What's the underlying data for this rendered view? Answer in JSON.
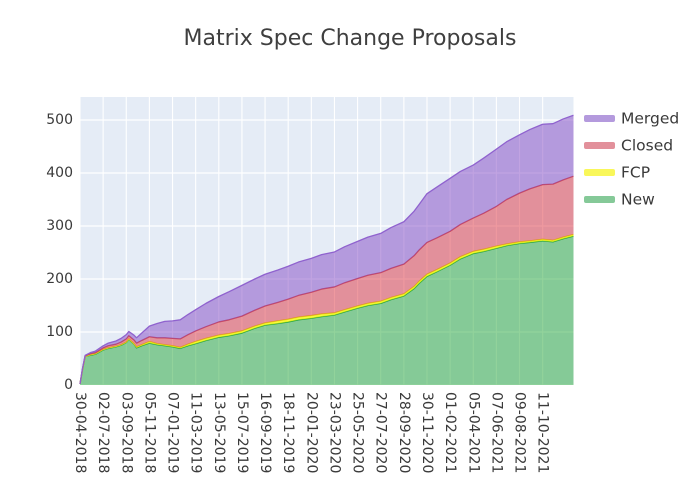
{
  "colors": {
    "plot_background": "#e5ecf6",
    "grid": "#ffffff",
    "text": "#3a3a3a",
    "title_text": "#3f3f3f"
  },
  "legend": {
    "position": "right-top",
    "entries": [
      {
        "label": "Merged",
        "swatch_color": "#b49add"
      },
      {
        "label": "Closed",
        "swatch_color": "#e2909b"
      },
      {
        "label": "FCP",
        "swatch_color": "#f9f75a"
      },
      {
        "label": "New",
        "swatch_color": "#85c998"
      }
    ]
  },
  "chart_data": {
    "type": "area",
    "stacked": true,
    "title": "Matrix Spec Change Proposals",
    "xlabel": "",
    "ylabel": "",
    "grid": true,
    "ylim": [
      0,
      543
    ],
    "y_ticks": [
      0,
      100,
      200,
      300,
      400,
      500
    ],
    "y_tick_labels": [
      "0",
      "100",
      "200",
      "300",
      "400",
      "500"
    ],
    "x_tick_labels": [
      "30-04-2018",
      "02-07-2018",
      "03-09-2018",
      "05-11-2018",
      "07-01-2019",
      "11-03-2019",
      "13-05-2019",
      "15-07-2019",
      "16-09-2019",
      "18-11-2019",
      "20-01-2020",
      "23-03-2020",
      "25-05-2020",
      "27-07-2020",
      "28-09-2020",
      "30-11-2020",
      "01-02-2021",
      "05-04-2021",
      "07-06-2021",
      "09-08-2021",
      "11-10-2021"
    ],
    "dates": [
      "30-04-2018",
      "07-05-2018",
      "14-05-2018",
      "28-05-2018",
      "11-06-2018",
      "02-07-2018",
      "16-07-2018",
      "06-08-2018",
      "20-08-2018",
      "03-09-2018",
      "10-09-2018",
      "24-09-2018",
      "01-10-2018",
      "15-10-2018",
      "05-11-2018",
      "26-11-2018",
      "17-12-2018",
      "07-01-2019",
      "28-01-2019",
      "18-02-2019",
      "11-03-2019",
      "08-04-2019",
      "13-05-2019",
      "10-06-2019",
      "15-07-2019",
      "19-08-2019",
      "16-09-2019",
      "21-10-2019",
      "18-11-2019",
      "16-12-2019",
      "20-01-2020",
      "17-02-2020",
      "23-03-2020",
      "20-04-2020",
      "25-05-2020",
      "22-06-2020",
      "27-07-2020",
      "24-08-2020",
      "28-09-2020",
      "26-10-2020",
      "09-11-2020",
      "30-11-2020",
      "28-12-2020",
      "01-02-2021",
      "01-03-2021",
      "05-04-2021",
      "03-05-2021",
      "07-06-2021",
      "05-07-2021",
      "09-08-2021",
      "06-09-2021",
      "11-10-2021",
      "08-11-2021",
      "06-12-2021",
      "03-01-2022"
    ],
    "series_order_bottom_to_top": [
      "New",
      "FCP",
      "Closed",
      "Merged"
    ],
    "series": [
      {
        "name": "New",
        "fill": "rgba(37,168,56,0.5)",
        "line": "#27a445",
        "values": [
          2,
          30,
          54,
          56,
          58,
          66,
          69,
          72,
          75,
          80,
          86,
          77,
          70,
          74,
          79,
          76,
          74,
          72,
          69,
          74,
          78,
          84,
          90,
          93,
          98,
          107,
          113,
          116,
          119,
          123,
          126,
          129,
          132,
          138,
          145,
          150,
          154,
          161,
          168,
          182,
          192,
          205,
          214,
          226,
          238,
          248,
          252,
          258,
          263,
          267,
          269,
          272,
          270,
          276,
          281
        ]
      },
      {
        "name": "FCP",
        "fill": "rgba(255,255,0,0.75)",
        "line": "#e3e313",
        "values": [
          0,
          0,
          0,
          1,
          1,
          1,
          1,
          1,
          1,
          1,
          1,
          1,
          2,
          2,
          3,
          2,
          2,
          2,
          2,
          3,
          4,
          4,
          4,
          4,
          4,
          4,
          4,
          5,
          5,
          5,
          5,
          5,
          4,
          4,
          4,
          4,
          4,
          4,
          4,
          4,
          4,
          4,
          4,
          4,
          4,
          4,
          4,
          4,
          3,
          3,
          3,
          3,
          3,
          3,
          3
        ]
      },
      {
        "name": "Closed",
        "fill": "rgba(223,52,64,0.5)",
        "line": "#cb4a5d",
        "values": [
          0,
          1,
          1,
          2,
          2,
          3,
          4,
          4,
          5,
          6,
          6,
          7,
          7,
          8,
          9,
          11,
          13,
          14,
          16,
          18,
          20,
          22,
          25,
          26,
          28,
          30,
          32,
          35,
          38,
          41,
          44,
          47,
          49,
          51,
          52,
          53,
          54,
          55,
          56,
          58,
          59,
          60,
          60,
          60,
          61,
          63,
          68,
          75,
          84,
          92,
          98,
          103,
          106,
          108,
          110
        ]
      },
      {
        "name": "Merged",
        "fill": "rgba(131,72,196,0.5)",
        "line": "#8f62ce",
        "values": [
          0,
          1,
          1,
          2,
          3,
          4,
          5,
          6,
          7,
          8,
          8,
          9,
          10,
          14,
          20,
          27,
          31,
          33,
          36,
          38,
          40,
          44,
          48,
          53,
          58,
          59,
          60,
          61,
          62,
          63,
          64,
          65,
          66,
          68,
          70,
          72,
          74,
          77,
          80,
          84,
          86,
          92,
          96,
          100,
          100,
          100,
          104,
          108,
          109,
          110,
          112,
          114,
          114,
          115,
          115
        ]
      }
    ]
  }
}
